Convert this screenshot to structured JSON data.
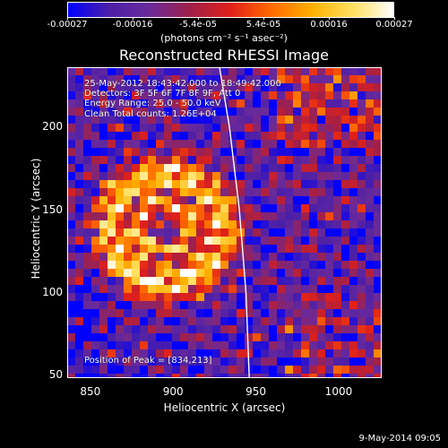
{
  "colorbar": {
    "ticks": [
      "-0.00027",
      "-0.00016",
      "-5.4e-05",
      "5.4e-05",
      "0.00016",
      "0.00027"
    ],
    "units": "(photons cm⁻² s⁻¹ asec⁻²)",
    "colormap": [
      "#0000ff",
      "#4b1fa8",
      "#6a2a9a",
      "#a0204a",
      "#e0201a",
      "#ff6a00",
      "#ffb000",
      "#ffe060",
      "#ffffff"
    ]
  },
  "annotations": {
    "time": "25-May-2012 18:43:42.000 to 18:49:42.000",
    "detectors": "Detectors: 3F 5F 6F 7F 8F 9F, Att 0",
    "energy": "Energy Range: 25.0 - 50.0 keV",
    "clean": "Clean     Total counts: 1.26E+04",
    "peak": "Position of Peak = [834,213]"
  },
  "footer": "9-May-2014 09:05",
  "chart_data": {
    "type": "heatmap",
    "title": "Reconstructed RHESSI Image",
    "xlabel": "Heliocentric X (arcsec)",
    "ylabel": "Heliocentric Y (arcsec)",
    "xlim": [
      836,
      1026
    ],
    "ylim": [
      48,
      236
    ],
    "xticks": [
      850,
      900,
      950,
      1000
    ],
    "yticks": [
      50,
      100,
      150,
      200
    ],
    "value_range": [
      -0.00027,
      0.00027
    ],
    "limb_curve": {
      "color": "#ffffff",
      "x": [
        928,
        934,
        940,
        944,
        946
      ],
      "y": [
        236,
        200,
        150,
        100,
        48
      ]
    }
  }
}
